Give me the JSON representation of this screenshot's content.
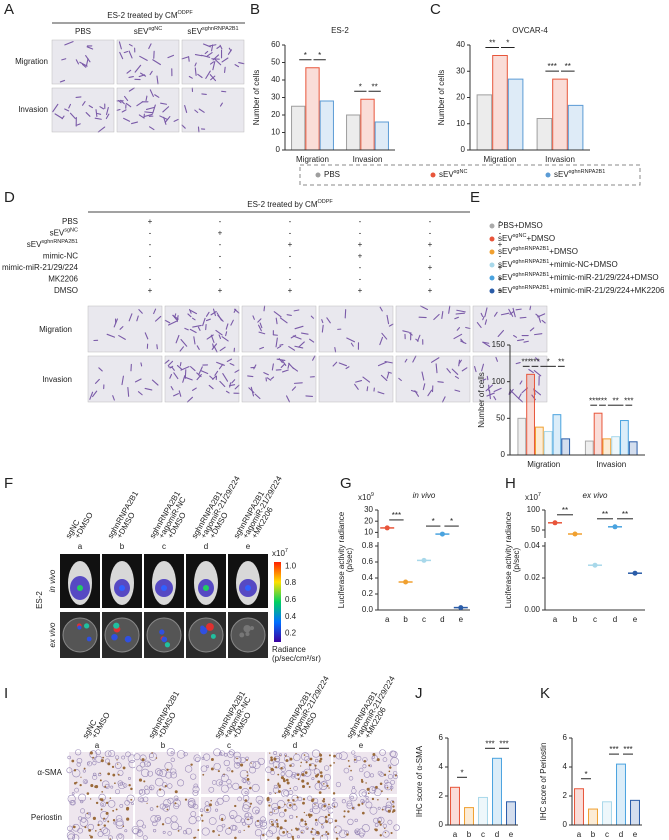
{
  "panel_a": {
    "letter": "A",
    "header": {
      "text": "ES-2 treated by CM",
      "sup": "ODPF"
    },
    "columns": [
      {
        "text": "PBS"
      },
      {
        "text": "sEV",
        "sup": "sgNC"
      },
      {
        "text": "sEV",
        "sup": "sghnRNPA2B1"
      }
    ],
    "rows": [
      "Migration",
      "Invasion"
    ]
  },
  "panel_d": {
    "letter": "D",
    "header": {
      "text": "ES-2 treated by CM",
      "sup": "ODPF"
    },
    "treatments": [
      {
        "name": {
          "text": "PBS"
        },
        "signs": [
          "+",
          "-",
          "-",
          "-",
          "-",
          "-"
        ]
      },
      {
        "name": {
          "text": "sEV",
          "sup": "sgNC"
        },
        "signs": [
          "-",
          "+",
          "-",
          "-",
          "-",
          "-"
        ]
      },
      {
        "name": {
          "text": "sEV",
          "sup": "sghnRNPA2B1"
        },
        "signs": [
          "-",
          "-",
          "+",
          "+",
          "+",
          "+"
        ]
      },
      {
        "name": {
          "text": "mimic-NC"
        },
        "signs": [
          "-",
          "-",
          "-",
          "+",
          "-",
          "-"
        ]
      },
      {
        "name": {
          "text": "mimic-miR-21/29/224"
        },
        "signs": [
          "-",
          "-",
          "-",
          "-",
          "+",
          "+"
        ]
      },
      {
        "name": {
          "text": "MK2206"
        },
        "signs": [
          "-",
          "-",
          "-",
          "-",
          "-",
          "+"
        ]
      },
      {
        "name": {
          "text": "DMSO"
        },
        "signs": [
          "+",
          "+",
          "+",
          "+",
          "+",
          "+"
        ]
      }
    ],
    "rows": [
      "Migration",
      "Invasion"
    ]
  },
  "panel_f": {
    "letter": "F",
    "groups": [
      {
        "lines": [
          "sgNC",
          "+DMSO"
        ],
        "id": "a"
      },
      {
        "lines": [
          "sghnRNPA2B1",
          "+DMSO"
        ],
        "id": "b"
      },
      {
        "lines": [
          "sghnRNPA2B1",
          "+agomiR-NC",
          "+DMSO"
        ],
        "id": "c"
      },
      {
        "lines": [
          "sghnRNPA2B1",
          "+agomiR-21/29/224",
          "+DMSO"
        ],
        "id": "d"
      },
      {
        "lines": [
          "sghnRNPA2B1",
          "+agomiR-21/29/224",
          "+MK2206"
        ],
        "id": "e"
      }
    ],
    "rows": [
      "in vivo",
      "ex vivo"
    ],
    "side": "ES-2",
    "colorbar": {
      "scale": {
        "text": "x10",
        "sup": "7"
      },
      "ticks": [
        {
          "value": 1,
          "label": "1.0"
        },
        {
          "value": 0.8,
          "label": "0.8"
        },
        {
          "value": 0.6,
          "label": "0.6"
        },
        {
          "value": 0.4,
          "label": "0.4"
        },
        {
          "value": 0.2,
          "label": "0.2"
        }
      ],
      "range": [
        0.1,
        1.05
      ],
      "title": [
        "Radiance",
        "(p/sec/cm²/sr)"
      ]
    }
  },
  "panel_i": {
    "letter": "I",
    "groups": [
      {
        "lines": [
          "sgNC",
          "+DMSO"
        ],
        "id": "a"
      },
      {
        "lines": [
          "sghnRNPA2B1",
          "+DMSO"
        ],
        "id": "b"
      },
      {
        "lines": [
          "sghnRNPA2B1",
          "+agomiR-NC",
          "+DMSO"
        ],
        "id": "c"
      },
      {
        "lines": [
          "sghnRNPA2B1",
          "+agomiR-21/29/224",
          "+DMSO"
        ],
        "id": "d"
      },
      {
        "lines": [
          "sghnRNPA2B1",
          "+agomiR-21/29/224",
          "+MK2206"
        ],
        "id": "e"
      }
    ],
    "rows": [
      "α-SMA",
      "Periostin"
    ]
  },
  "chart_data": [
    {
      "type": "bar",
      "letter": "B",
      "title": "ES-2",
      "ylabel": "Number of cells",
      "categories": [
        "Migration",
        "Invasion"
      ],
      "ylim": [
        0,
        60
      ],
      "yticks": [
        0,
        10,
        20,
        30,
        40,
        50,
        60
      ],
      "legend": true,
      "series": [
        {
          "name": {
            "text": "PBS"
          },
          "color": "#9e9e9e",
          "values": [
            25,
            20
          ]
        },
        {
          "name": {
            "text": "sEV",
            "sup": "sgNC"
          },
          "color": "#e8553a",
          "values": [
            47,
            29
          ]
        },
        {
          "name": {
            "text": "sEV",
            "sup": "sghnRNPA2B1"
          },
          "color": "#5b9bd5",
          "values": [
            28,
            16
          ]
        }
      ],
      "annotations": [
        {
          "text": "*",
          "category": 0,
          "between": [
            0,
            1
          ]
        },
        {
          "text": "*",
          "category": 0,
          "between": [
            1,
            2
          ]
        },
        {
          "text": "*",
          "category": 1,
          "between": [
            0,
            1
          ]
        },
        {
          "text": "**",
          "category": 1,
          "between": [
            1,
            2
          ]
        }
      ]
    },
    {
      "type": "bar",
      "letter": "C",
      "title": "OVCAR-4",
      "ylabel": "Number of cells",
      "categories": [
        "Migration",
        "Invasion"
      ],
      "ylim": [
        0,
        40
      ],
      "yticks": [
        0,
        10,
        20,
        30,
        40
      ],
      "series": [
        {
          "color": "#9e9e9e",
          "values": [
            21,
            12
          ]
        },
        {
          "color": "#e8553a",
          "values": [
            36,
            27
          ]
        },
        {
          "color": "#5b9bd5",
          "values": [
            27,
            17
          ]
        }
      ],
      "annotations": [
        {
          "text": "**",
          "category": 0,
          "between": [
            0,
            1
          ]
        },
        {
          "text": "*",
          "category": 0,
          "between": [
            1,
            2
          ]
        },
        {
          "text": "***",
          "category": 1,
          "between": [
            0,
            1
          ]
        },
        {
          "text": "**",
          "category": 1,
          "between": [
            1,
            2
          ]
        }
      ]
    },
    {
      "type": "bar",
      "letter": "E",
      "ylabel": "Number of cells",
      "categories": [
        "Migration",
        "Invasion"
      ],
      "ylim": [
        0,
        150
      ],
      "yticks": [
        0,
        50,
        100,
        150
      ],
      "legend": true,
      "series": [
        {
          "name": {
            "text": "PBS+DMSO"
          },
          "color": "#aaaaaa",
          "values": [
            50,
            19
          ]
        },
        {
          "name": {
            "text": "sEV",
            "sup": "sgNC",
            "suffix": "+DMSO"
          },
          "color": "#e8553a",
          "values": [
            110,
            57
          ]
        },
        {
          "name": {
            "text": "sEV",
            "sup": "sghnRNPA2B1",
            "suffix": "+DMSO"
          },
          "color": "#f0a030",
          "values": [
            38,
            22
          ]
        },
        {
          "name": {
            "text": "sEV",
            "sup": "sghnRNPA2B1",
            "suffix": "+mimic-NC+DMSO"
          },
          "color": "#a8d8ea",
          "values": [
            32,
            25
          ]
        },
        {
          "name": {
            "text": "sEV",
            "sup": "sghnRNPA2B1",
            "suffix": "+mimic-miR-21/29/224+DMSO"
          },
          "color": "#4aa3df",
          "values": [
            55,
            47
          ]
        },
        {
          "name": {
            "text": "sEV",
            "sup": "sghnRNPA2B1",
            "suffix": "+mimic-miR-21/29/224+MK2206"
          },
          "color": "#2a5ca8",
          "values": [
            22,
            18
          ]
        }
      ],
      "annotations": [
        {
          "text": "***",
          "category": 0,
          "between": [
            0,
            1
          ]
        },
        {
          "text": "***",
          "category": 0,
          "between": [
            1,
            2
          ]
        },
        {
          "text": "*",
          "category": 0,
          "between": [
            2,
            4
          ]
        },
        {
          "text": "**",
          "category": 0,
          "between": [
            4,
            5
          ]
        },
        {
          "text": "***",
          "category": 1,
          "between": [
            0,
            1
          ]
        },
        {
          "text": "***",
          "category": 1,
          "between": [
            1,
            2
          ]
        },
        {
          "text": "**",
          "category": 1,
          "between": [
            2,
            4
          ]
        },
        {
          "text": "***",
          "category": 1,
          "between": [
            4,
            5
          ]
        }
      ]
    },
    {
      "type": "dot",
      "letter": "G",
      "title": "in vivo",
      "scale": {
        "text": "x10",
        "sup": "9"
      },
      "ylabel": [
        "Luciferase activity radiance",
        "(p/sec)"
      ],
      "categories": [
        "a",
        "b",
        "c",
        "d",
        "e"
      ],
      "values": [
        14,
        0.35,
        0.62,
        8.5,
        0.03
      ],
      "colors": [
        "#e8553a",
        "#f0a030",
        "#a8d8ea",
        "#4aa3df",
        "#2a5ca8"
      ],
      "segments": [
        {
          "ylim": [
            0,
            0.8
          ],
          "yticks": [
            {
              "value": 0,
              "label": "0.0"
            },
            0.2,
            0.4,
            0.6,
            0.8
          ]
        },
        {
          "ylim": [
            5,
            30
          ],
          "yticks": [
            10,
            20,
            30
          ]
        }
      ],
      "annotations": [
        {
          "text": "***",
          "between": [
            0,
            1
          ]
        },
        {
          "text": "*",
          "between": [
            2,
            3
          ]
        },
        {
          "text": "*",
          "between": [
            3,
            4
          ]
        }
      ]
    },
    {
      "type": "dot",
      "letter": "H",
      "title": "ex vivo",
      "scale": {
        "text": "x10",
        "sup": "7"
      },
      "ylabel": [
        "Luciferase activity radiance",
        "(p/sec)"
      ],
      "categories": [
        "a",
        "b",
        "c",
        "d",
        "e"
      ],
      "values": [
        68,
        40,
        0.028,
        58,
        0.023
      ],
      "colors": [
        "#e8553a",
        "#f0a030",
        "#a8d8ea",
        "#4aa3df",
        "#2a5ca8"
      ],
      "segments": [
        {
          "ylim": [
            0,
            0.04
          ],
          "yticks": [
            {
              "value": 0,
              "label": "0.00"
            },
            {
              "value": 0.02,
              "label": "0.02"
            },
            {
              "value": 0.04,
              "label": "0.04"
            }
          ]
        },
        {
          "ylim": [
            30,
            100
          ],
          "yticks": [
            50,
            100
          ]
        }
      ],
      "annotations": [
        {
          "text": "**",
          "between": [
            0,
            1
          ]
        },
        {
          "text": "**",
          "between": [
            2,
            3
          ]
        },
        {
          "text": "**",
          "between": [
            3,
            4
          ]
        }
      ]
    },
    {
      "type": "bar",
      "letter": "J",
      "ylabel": "IHC score of α-SMA",
      "categories": [
        "a",
        "b",
        "c",
        "d",
        "e"
      ],
      "values": [
        2.6,
        1.2,
        1.9,
        4.6,
        1.6
      ],
      "colors": [
        "#e8553a",
        "#f0a030",
        "#a8d8ea",
        "#4aa3df",
        "#2a5ca8"
      ],
      "ylim": [
        0,
        6
      ],
      "yticks": [
        0,
        2,
        4,
        6
      ],
      "annotations": [
        {
          "text": "*",
          "between": [
            0,
            1
          ]
        },
        {
          "text": "***",
          "between": [
            2,
            3
          ]
        },
        {
          "text": "***",
          "between": [
            3,
            4
          ]
        }
      ]
    },
    {
      "type": "bar",
      "letter": "K",
      "ylabel": "IHC score of Periostin",
      "categories": [
        "a",
        "b",
        "c",
        "d",
        "e"
      ],
      "values": [
        2.5,
        1.1,
        1.6,
        4.2,
        1.7
      ],
      "colors": [
        "#e8553a",
        "#f0a030",
        "#a8d8ea",
        "#4aa3df",
        "#2a5ca8"
      ],
      "ylim": [
        0,
        6
      ],
      "yticks": [
        0,
        2,
        4,
        6
      ],
      "annotations": [
        {
          "text": "*",
          "between": [
            0,
            1
          ]
        },
        {
          "text": "***",
          "between": [
            2,
            3
          ]
        },
        {
          "text": "***",
          "between": [
            3,
            4
          ]
        }
      ]
    }
  ]
}
